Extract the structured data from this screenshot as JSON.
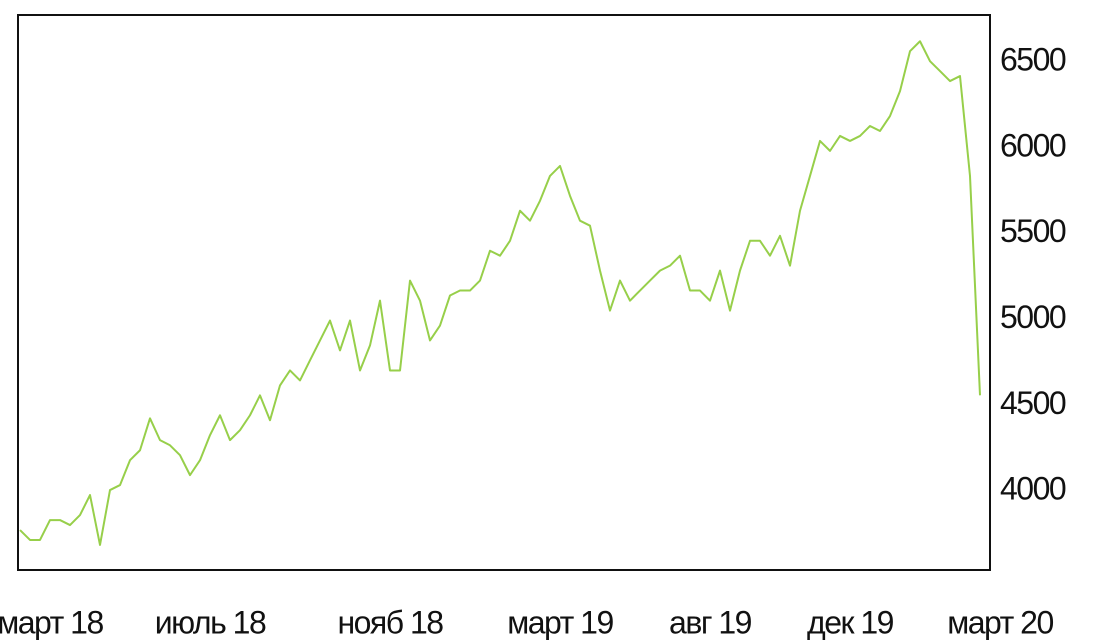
{
  "chart_data": {
    "type": "line",
    "categories": [
      null,
      null,
      null,
      "март 18",
      null,
      null,
      null,
      null,
      null,
      null,
      null,
      null,
      null,
      null,
      null,
      null,
      null,
      null,
      null,
      "июль 18",
      null,
      null,
      null,
      null,
      null,
      null,
      null,
      null,
      null,
      null,
      null,
      null,
      null,
      null,
      null,
      null,
      null,
      "нояб 18",
      null,
      null,
      null,
      null,
      null,
      null,
      null,
      null,
      null,
      null,
      null,
      null,
      null,
      null,
      null,
      null,
      "март 19",
      null,
      null,
      null,
      null,
      null,
      null,
      null,
      null,
      null,
      null,
      null,
      null,
      null,
      null,
      "авг 19",
      null,
      null,
      null,
      null,
      null,
      null,
      null,
      null,
      null,
      null,
      null,
      null,
      null,
      "дек 19",
      null,
      null,
      null,
      null,
      null,
      null,
      null,
      null,
      null,
      null,
      null,
      null,
      null,
      null,
      "март 20"
    ],
    "series": [
      {
        "color": "#97cf4a",
        "values": [
          3773,
          3715,
          3715,
          3831,
          3831,
          3802,
          3860,
          3977,
          3686,
          4006,
          4035,
          4180,
          4238,
          4424,
          4297,
          4267,
          4209,
          4093,
          4180,
          4326,
          4442,
          4297,
          4355,
          4442,
          4558,
          4413,
          4616,
          4703,
          4645,
          4762,
          4878,
          4994,
          4820,
          4994,
          4703,
          4849,
          5110,
          4703,
          4703,
          5227,
          5110,
          4878,
          4965,
          5140,
          5169,
          5169,
          5227,
          5401,
          5372,
          5459,
          5634,
          5576,
          5692,
          5837,
          5895,
          5721,
          5576,
          5547,
          5285,
          5052,
          5227,
          5110,
          5169,
          5227,
          5285,
          5314,
          5372,
          5169,
          5169,
          5110,
          5285,
          5052,
          5285,
          5459,
          5459,
          5372,
          5488,
          5314,
          5634,
          5837,
          6041,
          5983,
          6070,
          6041,
          6070,
          6128,
          6099,
          6186,
          6331,
          6564,
          6622,
          6506,
          6448,
          6390,
          6419,
          5837,
          4558,
          null,
          null
        ]
      }
    ],
    "ylim": [
      3540,
      6775
    ],
    "yticks": [
      4000,
      4500,
      5000,
      5500,
      6000,
      6500
    ]
  }
}
